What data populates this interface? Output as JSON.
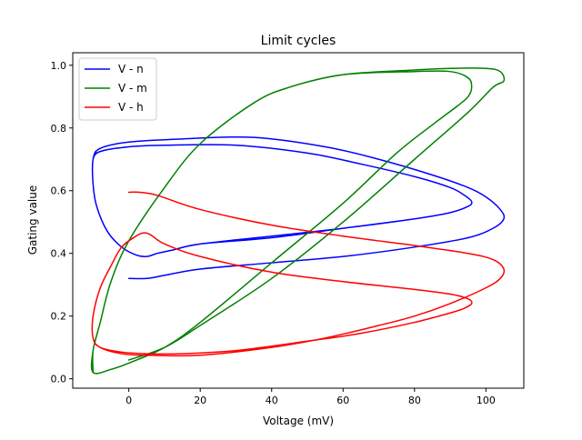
{
  "chart_data": {
    "type": "line",
    "title": "Limit cycles",
    "xlabel": "Voltage (mV)",
    "ylabel": "Gating value",
    "xlim": [
      -15.7,
      110.6
    ],
    "ylim": [
      -0.03,
      1.04
    ],
    "xticks": [
      0,
      20,
      40,
      60,
      80,
      100
    ],
    "yticks": [
      0.0,
      0.2,
      0.4,
      0.6,
      0.8,
      1.0
    ],
    "xtick_labels": [
      "0",
      "20",
      "40",
      "60",
      "80",
      "100"
    ],
    "ytick_labels": [
      "0.0",
      "0.2",
      "0.4",
      "0.6",
      "0.8",
      "1.0"
    ],
    "grid": false,
    "legend_position": "upper left",
    "series": [
      {
        "name": "V - n",
        "color": "#0000ff",
        "points": [
          [
            0,
            0.32
          ],
          [
            5,
            0.32
          ],
          [
            10,
            0.33
          ],
          [
            20,
            0.35
          ],
          [
            40,
            0.37
          ],
          [
            60,
            0.39
          ],
          [
            80,
            0.42
          ],
          [
            95,
            0.45
          ],
          [
            102,
            0.48
          ],
          [
            105,
            0.51
          ],
          [
            104,
            0.54
          ],
          [
            100,
            0.58
          ],
          [
            95,
            0.61
          ],
          [
            85,
            0.65
          ],
          [
            70,
            0.7
          ],
          [
            55,
            0.74
          ],
          [
            35,
            0.77
          ],
          [
            15,
            0.765
          ],
          [
            0,
            0.755
          ],
          [
            -8,
            0.735
          ],
          [
            -10,
            0.7
          ],
          [
            -10,
            0.62
          ],
          [
            -9,
            0.55
          ],
          [
            -6,
            0.47
          ],
          [
            -2,
            0.42
          ],
          [
            2,
            0.395
          ],
          [
            5,
            0.39
          ],
          [
            8,
            0.4
          ],
          [
            12,
            0.41
          ],
          [
            20,
            0.43
          ],
          [
            40,
            0.45
          ],
          [
            60,
            0.48
          ],
          [
            80,
            0.51
          ],
          [
            90,
            0.53
          ],
          [
            95,
            0.55
          ],
          [
            96,
            0.565
          ],
          [
            94,
            0.585
          ],
          [
            90,
            0.61
          ],
          [
            80,
            0.645
          ],
          [
            65,
            0.685
          ],
          [
            50,
            0.72
          ],
          [
            30,
            0.745
          ],
          [
            10,
            0.745
          ],
          [
            0,
            0.74
          ],
          [
            -8,
            0.725
          ],
          [
            -10,
            0.7
          ],
          [
            -10,
            0.62
          ],
          [
            -9,
            0.55
          ],
          [
            -6,
            0.47
          ],
          [
            -2,
            0.42
          ],
          [
            2,
            0.395
          ],
          [
            5,
            0.39
          ],
          [
            8,
            0.4
          ],
          [
            12,
            0.41
          ],
          [
            20,
            0.43
          ],
          [
            40,
            0.455
          ],
          [
            60,
            0.48
          ],
          [
            80,
            0.51
          ],
          [
            90,
            0.53
          ],
          [
            95,
            0.55
          ],
          [
            96,
            0.565
          ],
          [
            94,
            0.585
          ],
          [
            90,
            0.61
          ],
          [
            80,
            0.645
          ],
          [
            65,
            0.685
          ],
          [
            50,
            0.72
          ],
          [
            30,
            0.745
          ],
          [
            10,
            0.745
          ],
          [
            0,
            0.74
          ],
          [
            -8,
            0.725
          ],
          [
            -10,
            0.705
          ]
        ]
      },
      {
        "name": "V - m",
        "color": "#008000",
        "points": [
          [
            0,
            0.06
          ],
          [
            10,
            0.1
          ],
          [
            20,
            0.17
          ],
          [
            40,
            0.32
          ],
          [
            60,
            0.5
          ],
          [
            80,
            0.7
          ],
          [
            95,
            0.85
          ],
          [
            102,
            0.93
          ],
          [
            105,
            0.95
          ],
          [
            104,
            0.98
          ],
          [
            100,
            0.99
          ],
          [
            90,
            0.99
          ],
          [
            80,
            0.985
          ],
          [
            60,
            0.97
          ],
          [
            45,
            0.93
          ],
          [
            35,
            0.88
          ],
          [
            20,
            0.75
          ],
          [
            10,
            0.61
          ],
          [
            0,
            0.44
          ],
          [
            -5,
            0.31
          ],
          [
            -8,
            0.18
          ],
          [
            -10,
            0.09
          ],
          [
            -10,
            0.02
          ],
          [
            -5,
            0.03
          ],
          [
            0,
            0.05
          ],
          [
            10,
            0.1
          ],
          [
            20,
            0.18
          ],
          [
            40,
            0.37
          ],
          [
            60,
            0.56
          ],
          [
            75,
            0.72
          ],
          [
            85,
            0.81
          ],
          [
            92,
            0.87
          ],
          [
            95,
            0.9
          ],
          [
            96,
            0.93
          ],
          [
            95,
            0.96
          ],
          [
            90,
            0.98
          ],
          [
            80,
            0.98
          ],
          [
            60,
            0.97
          ],
          [
            45,
            0.93
          ],
          [
            35,
            0.88
          ],
          [
            20,
            0.75
          ],
          [
            10,
            0.61
          ],
          [
            0,
            0.44
          ],
          [
            -5,
            0.31
          ],
          [
            -8,
            0.18
          ],
          [
            -10,
            0.09
          ],
          [
            -10,
            0.02
          ],
          [
            -5,
            0.03
          ],
          [
            0,
            0.05
          ],
          [
            10,
            0.1
          ],
          [
            20,
            0.18
          ],
          [
            40,
            0.37
          ],
          [
            60,
            0.56
          ],
          [
            75,
            0.72
          ],
          [
            85,
            0.81
          ],
          [
            92,
            0.87
          ],
          [
            95,
            0.9
          ],
          [
            96,
            0.93
          ],
          [
            95,
            0.96
          ],
          [
            90,
            0.98
          ],
          [
            80,
            0.98
          ],
          [
            60,
            0.97
          ],
          [
            45,
            0.93
          ],
          [
            35,
            0.88
          ],
          [
            20,
            0.75
          ],
          [
            10,
            0.61
          ],
          [
            0,
            0.44
          ],
          [
            -5,
            0.31
          ],
          [
            -8,
            0.18
          ],
          [
            -10,
            0.09
          ],
          [
            -10,
            0.02
          ]
        ]
      },
      {
        "name": "V - h",
        "color": "#ff0000",
        "points": [
          [
            0,
            0.595
          ],
          [
            3,
            0.595
          ],
          [
            8,
            0.585
          ],
          [
            20,
            0.54
          ],
          [
            40,
            0.49
          ],
          [
            60,
            0.455
          ],
          [
            80,
            0.425
          ],
          [
            95,
            0.4
          ],
          [
            102,
            0.38
          ],
          [
            105,
            0.35
          ],
          [
            104,
            0.32
          ],
          [
            100,
            0.29
          ],
          [
            90,
            0.24
          ],
          [
            80,
            0.2
          ],
          [
            70,
            0.17
          ],
          [
            55,
            0.13
          ],
          [
            40,
            0.1
          ],
          [
            20,
            0.075
          ],
          [
            5,
            0.075
          ],
          [
            -2,
            0.08
          ],
          [
            -8,
            0.1
          ],
          [
            -10,
            0.13
          ],
          [
            -10,
            0.2
          ],
          [
            -8,
            0.29
          ],
          [
            -5,
            0.36
          ],
          [
            -2,
            0.42
          ],
          [
            2,
            0.455
          ],
          [
            4,
            0.465
          ],
          [
            6,
            0.46
          ],
          [
            10,
            0.43
          ],
          [
            20,
            0.39
          ],
          [
            40,
            0.34
          ],
          [
            60,
            0.31
          ],
          [
            80,
            0.285
          ],
          [
            90,
            0.27
          ],
          [
            95,
            0.255
          ],
          [
            96,
            0.24
          ],
          [
            94,
            0.225
          ],
          [
            90,
            0.21
          ],
          [
            80,
            0.18
          ],
          [
            65,
            0.145
          ],
          [
            50,
            0.12
          ],
          [
            30,
            0.09
          ],
          [
            15,
            0.08
          ],
          [
            5,
            0.08
          ],
          [
            -2,
            0.085
          ],
          [
            -8,
            0.1
          ],
          [
            -10,
            0.13
          ],
          [
            -10,
            0.2
          ],
          [
            -8,
            0.29
          ],
          [
            -5,
            0.36
          ],
          [
            -2,
            0.42
          ],
          [
            2,
            0.455
          ],
          [
            4,
            0.465
          ],
          [
            6,
            0.46
          ],
          [
            10,
            0.43
          ],
          [
            20,
            0.39
          ],
          [
            40,
            0.34
          ],
          [
            60,
            0.31
          ],
          [
            80,
            0.285
          ],
          [
            90,
            0.27
          ],
          [
            95,
            0.255
          ],
          [
            96,
            0.24
          ],
          [
            94,
            0.225
          ],
          [
            90,
            0.21
          ],
          [
            80,
            0.18
          ],
          [
            65,
            0.145
          ],
          [
            50,
            0.12
          ],
          [
            30,
            0.09
          ],
          [
            15,
            0.08
          ],
          [
            5,
            0.08
          ],
          [
            -2,
            0.085
          ],
          [
            -8,
            0.1
          ],
          [
            -10,
            0.13
          ],
          [
            -10,
            0.2
          ],
          [
            -8,
            0.29
          ],
          [
            -5,
            0.36
          ],
          [
            -2,
            0.42
          ],
          [
            2,
            0.455
          ],
          [
            4,
            0.465
          ],
          [
            6,
            0.46
          ],
          [
            10,
            0.43
          ],
          [
            20,
            0.39
          ],
          [
            40,
            0.34
          ],
          [
            60,
            0.31
          ],
          [
            80,
            0.285
          ],
          [
            90,
            0.27
          ],
          [
            95,
            0.255
          ],
          [
            96,
            0.24
          ],
          [
            94,
            0.225
          ]
        ]
      }
    ]
  }
}
